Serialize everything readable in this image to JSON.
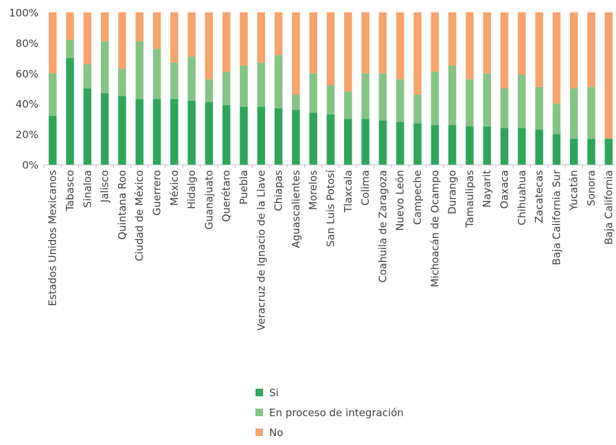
{
  "chart_data": {
    "type": "bar",
    "stacked": true,
    "percent": true,
    "ylim": [
      0,
      100
    ],
    "ytick_labels": [
      "0%",
      "20%",
      "40%",
      "60%",
      "80%",
      "100%"
    ],
    "categories": [
      "Estados Unidos Mexicanos",
      "Tabasco",
      "Sinaloa",
      "Jalisco",
      "Quintana Roo",
      "Ciudad de México",
      "Guerrero",
      "México",
      "Hidalgo",
      "Guanajuato",
      "Querétaro",
      "Puebla",
      "Veracruz de Ignacio de la Llave",
      "Chiapas",
      "Aguascalientes",
      "Morelos",
      "San Luis Potosí",
      "Tlaxcala",
      "Colima",
      "Coahuila de Zaragoza",
      "Nuevo León",
      "Campeche",
      "Michoacán de Ocampo",
      "Durango",
      "Tamaulipas",
      "Nayarit",
      "Oaxaca",
      "Chihuahua",
      "Zacatecas",
      "Baja California Sur",
      "Yucatán",
      "Sonora",
      "Baja California"
    ],
    "series": [
      {
        "name": "Si",
        "color": "#2ea55b",
        "values": [
          32,
          70,
          50,
          47,
          45,
          43,
          43,
          43,
          42,
          41,
          39,
          38,
          38,
          37,
          36,
          34,
          33,
          30,
          30,
          29,
          28,
          27,
          26,
          26,
          25,
          25,
          24,
          24,
          23,
          20,
          17,
          17,
          17
        ]
      },
      {
        "name": "En proceso de integración",
        "color": "#86c485",
        "values": [
          28,
          12,
          16,
          34,
          18,
          38,
          33,
          24,
          29,
          15,
          22,
          27,
          29,
          35,
          10,
          26,
          19,
          18,
          30,
          31,
          28,
          19,
          35,
          39,
          31,
          35,
          26,
          35,
          28,
          20,
          33,
          34,
          0
        ]
      },
      {
        "name": "No",
        "color": "#f4a46c",
        "values": [
          40,
          18,
          34,
          19,
          37,
          19,
          24,
          33,
          29,
          44,
          39,
          35,
          33,
          28,
          54,
          40,
          48,
          52,
          40,
          40,
          44,
          54,
          39,
          35,
          44,
          40,
          50,
          41,
          49,
          60,
          50,
          49,
          83
        ]
      }
    ],
    "legend_position": "bottom",
    "grid": false
  }
}
